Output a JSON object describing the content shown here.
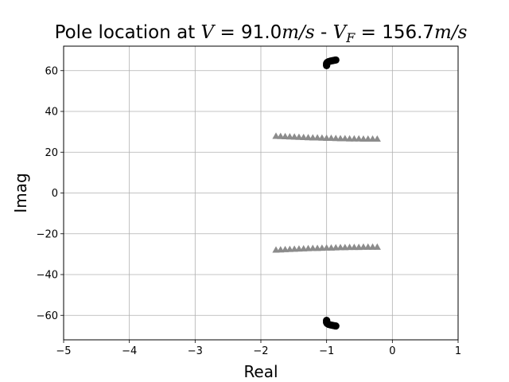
{
  "chart_data": {
    "type": "scatter",
    "title": {
      "prefix": "Pole location at ",
      "v_symbol": "V",
      "v_value": " = 91.0",
      "v_unit": "m/s",
      "separator": " - ",
      "vf_symbol": "V",
      "vf_sub": "F",
      "vf_value": " = 156.7",
      "vf_unit": "m/s"
    },
    "xlabel": "Real",
    "ylabel": "Imag",
    "xlim": [
      -5,
      1
    ],
    "ylim": [
      -72,
      72
    ],
    "xticks": [
      -5,
      -4,
      -3,
      -2,
      -1,
      0,
      1
    ],
    "yticks": [
      -60,
      -40,
      -20,
      0,
      20,
      40,
      60
    ],
    "xtick_labels": [
      "−5",
      "−4",
      "−3",
      "−2",
      "−1",
      "0",
      "1"
    ],
    "ytick_labels": [
      "−60",
      "−40",
      "−20",
      "0",
      "20",
      "40",
      "60"
    ],
    "grid": true,
    "series": [
      {
        "marker": "circle",
        "color": "#000000",
        "points": [
          [
            -1.0,
            62.5
          ],
          [
            -1.0,
            63.0
          ],
          [
            -1.0,
            63.5
          ],
          [
            -0.99,
            64.0
          ],
          [
            -0.97,
            64.4
          ],
          [
            -0.94,
            64.7
          ],
          [
            -0.91,
            64.9
          ],
          [
            -0.88,
            65.1
          ],
          [
            -0.86,
            65.2
          ],
          [
            -1.0,
            -62.5
          ],
          [
            -1.0,
            -63.0
          ],
          [
            -1.0,
            -63.5
          ],
          [
            -0.99,
            -64.0
          ],
          [
            -0.97,
            -64.4
          ],
          [
            -0.94,
            -64.7
          ],
          [
            -0.91,
            -64.9
          ],
          [
            -0.88,
            -65.1
          ],
          [
            -0.86,
            -65.2
          ]
        ]
      },
      {
        "marker": "triangle",
        "color": "#8c8c8c",
        "points": [
          [
            -1.77,
            27.9
          ],
          [
            -1.7,
            27.8
          ],
          [
            -1.63,
            27.7
          ],
          [
            -1.56,
            27.6
          ],
          [
            -1.49,
            27.5
          ],
          [
            -1.42,
            27.4
          ],
          [
            -1.35,
            27.3
          ],
          [
            -1.28,
            27.2
          ],
          [
            -1.21,
            27.1
          ],
          [
            -1.14,
            27.1
          ],
          [
            -1.07,
            27.0
          ],
          [
            -1.0,
            26.9
          ],
          [
            -0.93,
            26.9
          ],
          [
            -0.86,
            26.8
          ],
          [
            -0.79,
            26.7
          ],
          [
            -0.72,
            26.7
          ],
          [
            -0.65,
            26.6
          ],
          [
            -0.58,
            26.6
          ],
          [
            -0.51,
            26.6
          ],
          [
            -0.44,
            26.5
          ],
          [
            -0.37,
            26.5
          ],
          [
            -0.3,
            26.5
          ],
          [
            -0.23,
            26.5
          ],
          [
            -1.77,
            -27.9
          ],
          [
            -1.7,
            -27.8
          ],
          [
            -1.63,
            -27.7
          ],
          [
            -1.56,
            -27.6
          ],
          [
            -1.49,
            -27.5
          ],
          [
            -1.42,
            -27.4
          ],
          [
            -1.35,
            -27.3
          ],
          [
            -1.28,
            -27.2
          ],
          [
            -1.21,
            -27.1
          ],
          [
            -1.14,
            -27.1
          ],
          [
            -1.07,
            -27.0
          ],
          [
            -1.0,
            -26.9
          ],
          [
            -0.93,
            -26.9
          ],
          [
            -0.86,
            -26.8
          ],
          [
            -0.79,
            -26.7
          ],
          [
            -0.72,
            -26.7
          ],
          [
            -0.65,
            -26.6
          ],
          [
            -0.58,
            -26.6
          ],
          [
            -0.51,
            -26.6
          ],
          [
            -0.44,
            -26.5
          ],
          [
            -0.37,
            -26.5
          ],
          [
            -0.3,
            -26.5
          ],
          [
            -0.23,
            -26.5
          ]
        ]
      }
    ]
  }
}
